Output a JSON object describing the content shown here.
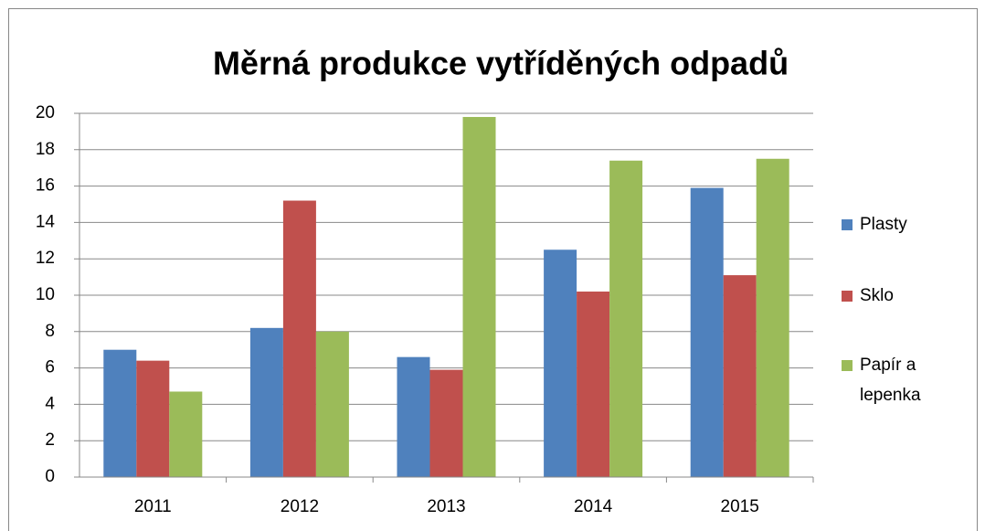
{
  "chart_data": {
    "type": "bar",
    "title": "Měrná produkce vytříděných odpadů",
    "categories": [
      "2011",
      "2012",
      "2013",
      "2014",
      "2015"
    ],
    "series": [
      {
        "name": "Plasty",
        "color": "#4f81bd",
        "values": [
          7.0,
          8.2,
          6.6,
          12.5,
          15.9
        ]
      },
      {
        "name": "Sklo",
        "color": "#c0504d",
        "values": [
          6.4,
          15.2,
          5.9,
          10.2,
          11.1
        ]
      },
      {
        "name": "Papír a lepenka",
        "color": "#9bbb59",
        "values": [
          4.7,
          8.0,
          19.8,
          17.4,
          17.5
        ]
      }
    ],
    "ylim": [
      0,
      20
    ],
    "yticks": [
      0,
      2,
      4,
      6,
      8,
      10,
      12,
      14,
      16,
      18,
      20
    ],
    "grid": true,
    "legend": "right"
  }
}
